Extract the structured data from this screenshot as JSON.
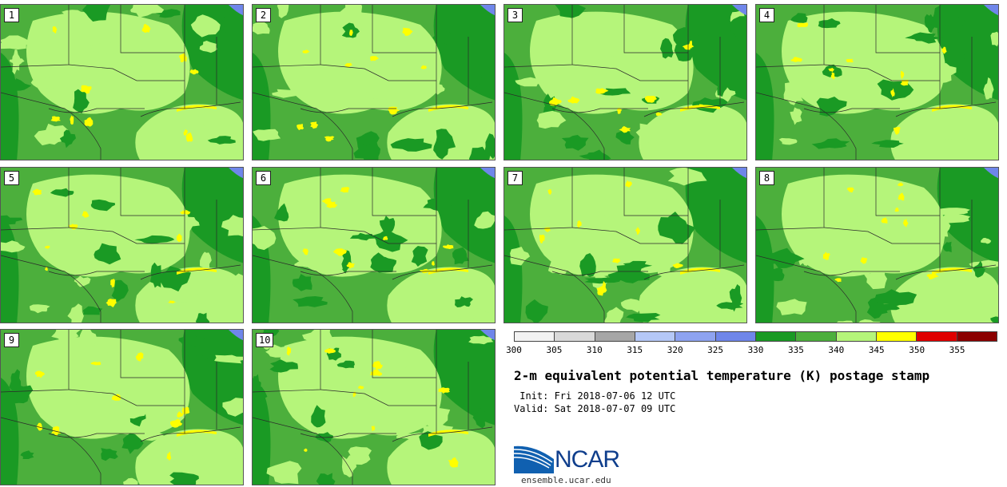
{
  "figure": {
    "title": "2-m equivalent potential temperature (K) postage stamp",
    "init_label": " Init: Fri 2018-07-06 12 UTC",
    "valid_label": "Valid: Sat 2018-07-07 09 UTC"
  },
  "members": [
    {
      "label": "1"
    },
    {
      "label": "2"
    },
    {
      "label": "3"
    },
    {
      "label": "4"
    },
    {
      "label": "5"
    },
    {
      "label": "6"
    },
    {
      "label": "7"
    },
    {
      "label": "8"
    },
    {
      "label": "9"
    },
    {
      "label": "10"
    }
  ],
  "colorbar": {
    "unit": "K",
    "ticks": [
      "300",
      "305",
      "310",
      "315",
      "320",
      "325",
      "330",
      "335",
      "340",
      "345",
      "350",
      "355"
    ],
    "bins": [
      {
        "from": 300,
        "to": 305,
        "color": "#f2f2f2"
      },
      {
        "from": 305,
        "to": 310,
        "color": "#d9d9d9"
      },
      {
        "from": 310,
        "to": 315,
        "color": "#a6a6a6"
      },
      {
        "from": 315,
        "to": 320,
        "color": "#b5c8f7"
      },
      {
        "from": 320,
        "to": 325,
        "color": "#8ea3f0"
      },
      {
        "from": 325,
        "to": 330,
        "color": "#6f86ea"
      },
      {
        "from": 330,
        "to": 335,
        "color": "#1a9a24"
      },
      {
        "from": 335,
        "to": 340,
        "color": "#4caf3c"
      },
      {
        "from": 340,
        "to": 345,
        "color": "#b5f57a"
      },
      {
        "from": 345,
        "to": 350,
        "color": "#ffff00"
      },
      {
        "from": 350,
        "to": 355,
        "color": "#e00000"
      },
      {
        "from": 355,
        "to": 360,
        "color": "#8b0000"
      }
    ]
  },
  "logo": {
    "text": "NCAR",
    "url": "ensemble.ucar.edu"
  }
}
